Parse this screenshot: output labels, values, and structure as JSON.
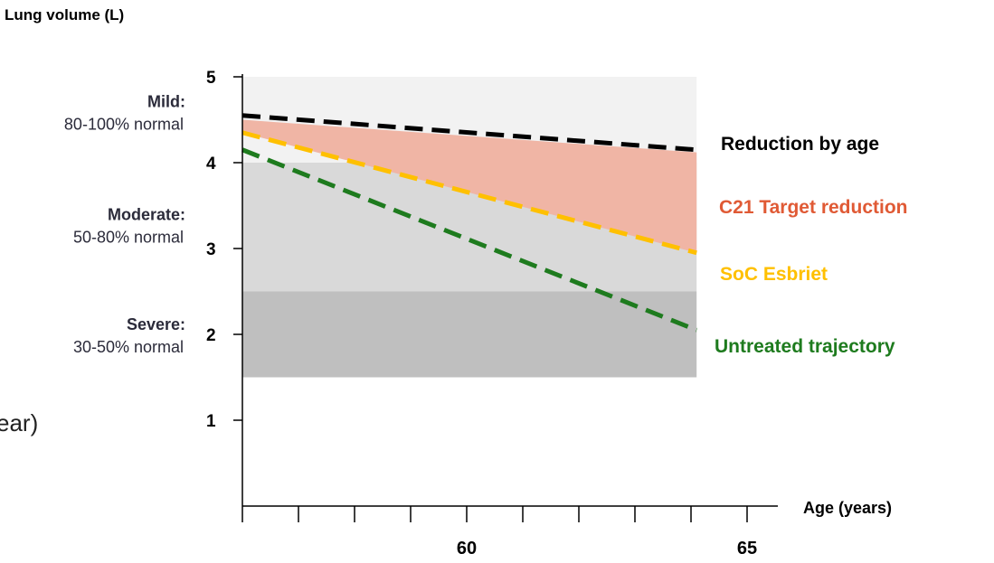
{
  "chart_data": {
    "type": "line",
    "ylabel": "Lung volume (L)",
    "xlabel": "Age (years)",
    "ylim": [
      0,
      5
    ],
    "xlim": [
      56,
      65.5
    ],
    "y_ticks": [
      1,
      2,
      3,
      4,
      5
    ],
    "x_ticks_minor": [
      56,
      57,
      58,
      59,
      60,
      61,
      62,
      63,
      64,
      65
    ],
    "x_tick_labels": [
      60,
      65
    ],
    "severity_bands": [
      {
        "name": "Mild:",
        "desc": "80-100% normal",
        "y_range": [
          4.0,
          5.0
        ],
        "color": "#f2f2f2"
      },
      {
        "name": "Moderate:",
        "desc": "50-80% normal",
        "y_range": [
          2.5,
          4.0
        ],
        "color": "#d9d9d9"
      },
      {
        "name": "Severe:",
        "desc": "30-50% normal",
        "y_range": [
          1.5,
          2.5
        ],
        "color": "#bfbfbf"
      }
    ],
    "series": [
      {
        "name": "Reduction by age",
        "x": [
          56,
          64.1
        ],
        "y": [
          4.55,
          4.15
        ],
        "color": "#000000",
        "style": "dashed"
      },
      {
        "name": "SoC Esbriet",
        "x": [
          56,
          64.1
        ],
        "y": [
          4.35,
          2.95
        ],
        "color": "#ffc000",
        "style": "dashed"
      },
      {
        "name": "Untreated trajectory",
        "x": [
          56,
          64.1
        ],
        "y": [
          4.15,
          2.05
        ],
        "color": "#1e7b1e",
        "style": "dashed"
      }
    ],
    "target_area": {
      "name": "C21 Target reduction",
      "x": [
        56,
        64.1
      ],
      "y_upper": [
        4.5,
        4.12
      ],
      "y_lower": [
        4.35,
        2.95
      ],
      "color": "#f0b5a5",
      "label_color": "#e05a35"
    },
    "clipped_text": "ear)"
  }
}
